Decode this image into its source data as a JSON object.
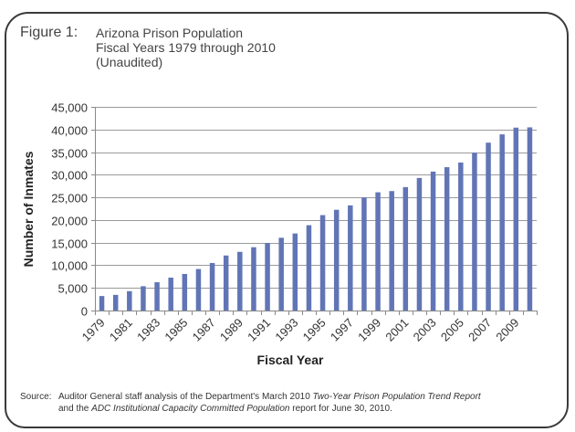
{
  "figure": {
    "label": "Figure 1:",
    "title_lines": [
      "Arizona Prison Population",
      "Fiscal Years 1979 through 2010",
      "(Unaudited)"
    ]
  },
  "source": {
    "label": "Source:",
    "line1_prefix": "Auditor General staff analysis of the Department's March 2010 ",
    "line1_italic": "Two-Year Prison Population Trend Report",
    "line2_prefix": "and the ",
    "line2_italic": "ADC Institutional Capacity Committed Population",
    "line2_suffix": " report for June 30, 2010."
  },
  "colors": {
    "bar": "#6175b6",
    "grid": "#9a9a9a",
    "axis": "#8a8a8a"
  },
  "chart_data": {
    "type": "bar",
    "title": "Arizona Prison Population Fiscal Years 1979 through 2010 (Unaudited)",
    "xlabel": "Fiscal Year",
    "ylabel": "Number of Inmates",
    "ylim": [
      0,
      45000
    ],
    "yticks": [
      0,
      5000,
      10000,
      15000,
      20000,
      25000,
      30000,
      35000,
      40000,
      45000
    ],
    "ytick_labels": [
      "0",
      "5,000",
      "10,000",
      "15,000",
      "20,000",
      "25,000",
      "30,000",
      "35,000",
      "40,000",
      "45,000"
    ],
    "grid": true,
    "legend": "none",
    "categories": [
      "1979",
      "1980",
      "1981",
      "1982",
      "1983",
      "1984",
      "1985",
      "1986",
      "1987",
      "1988",
      "1989",
      "1990",
      "1991",
      "1992",
      "1993",
      "1994",
      "1995",
      "1996",
      "1997",
      "1998",
      "1999",
      "2000",
      "2001",
      "2002",
      "2003",
      "2004",
      "2005",
      "2006",
      "2007",
      "2008",
      "2009",
      "2010"
    ],
    "xtick_labels": [
      "1979",
      "",
      "1981",
      "",
      "1983",
      "",
      "1985",
      "",
      "1987",
      "",
      "1989",
      "",
      "1991",
      "",
      "1993",
      "",
      "1995",
      "",
      "1997",
      "",
      "1999",
      "",
      "2001",
      "",
      "2003",
      "",
      "2005",
      "",
      "2007",
      "",
      "2009",
      ""
    ],
    "values": [
      3200,
      3460,
      4280,
      5370,
      6250,
      7270,
      8080,
      9170,
      10500,
      12160,
      12970,
      13990,
      14930,
      16080,
      17030,
      18850,
      21080,
      22260,
      23230,
      24980,
      26120,
      26390,
      27270,
      29290,
      30700,
      31670,
      32700,
      34860,
      37090,
      38920,
      40410,
      40470
    ]
  }
}
